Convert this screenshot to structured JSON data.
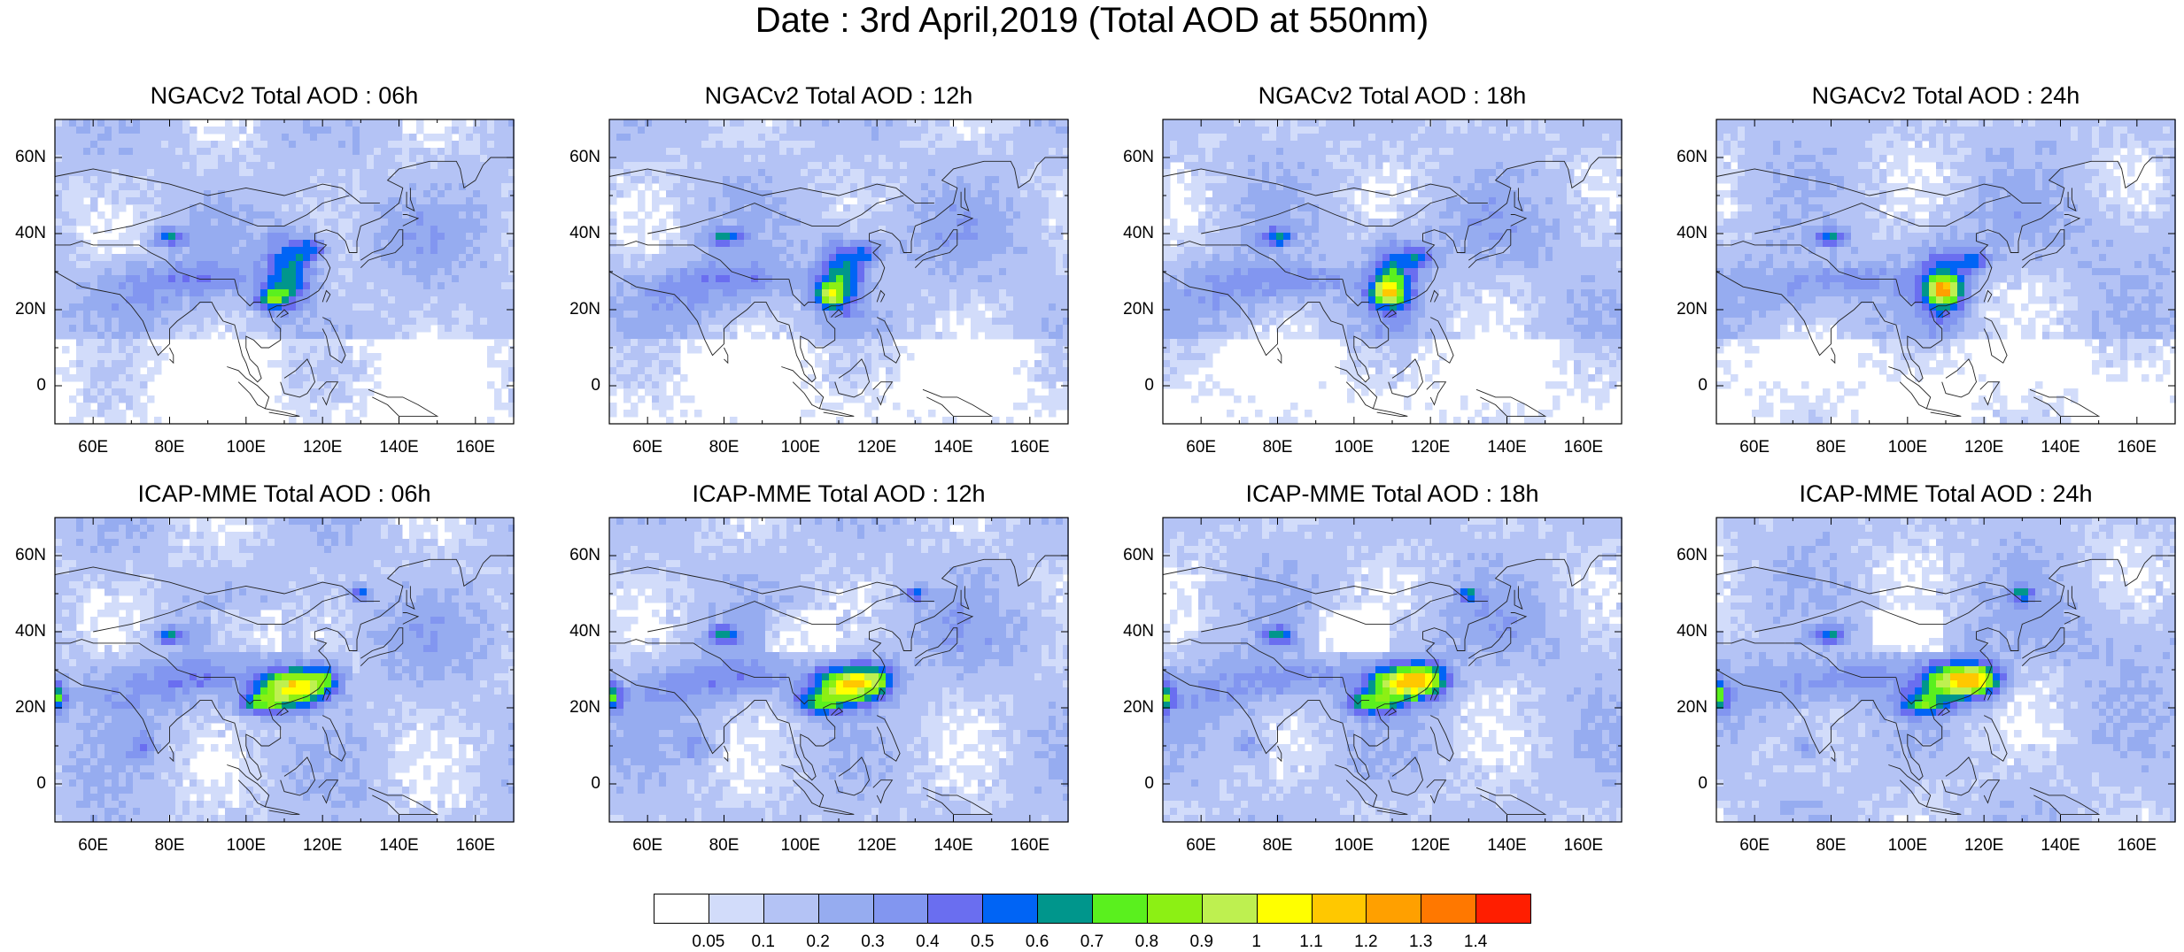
{
  "title": "Date : 3rd April,2019 (Total AOD at 550nm)",
  "lat_ticks": [
    "60N",
    "40N",
    "20N",
    "0"
  ],
  "lon_ticks": [
    "60E",
    "80E",
    "100E",
    "120E",
    "140E",
    "160E"
  ],
  "panels": [
    {
      "title": "NGACv2 Total AOD : 06h",
      "model": "ngac",
      "hour": 6
    },
    {
      "title": "NGACv2 Total AOD : 12h",
      "model": "ngac",
      "hour": 12
    },
    {
      "title": "NGACv2 Total AOD : 18h",
      "model": "ngac",
      "hour": 18
    },
    {
      "title": "NGACv2 Total AOD : 24h",
      "model": "ngac",
      "hour": 24
    },
    {
      "title": "ICAP-MME Total AOD : 06h",
      "model": "icap",
      "hour": 6
    },
    {
      "title": "ICAP-MME Total AOD : 12h",
      "model": "icap",
      "hour": 12
    },
    {
      "title": "ICAP-MME Total AOD : 18h",
      "model": "icap",
      "hour": 18
    },
    {
      "title": "ICAP-MME Total AOD : 24h",
      "model": "icap",
      "hour": 24
    }
  ],
  "colorbar": {
    "labels": [
      "0.05",
      "0.1",
      "0.2",
      "0.3",
      "0.4",
      "0.5",
      "0.6",
      "0.7",
      "0.8",
      "0.9",
      "1",
      "1.1",
      "1.2",
      "1.3",
      "1.4"
    ],
    "colors": [
      "#ffffff",
      "#d2dcfa",
      "#b4c3f5",
      "#96acf0",
      "#8296f0",
      "#6a6ef0",
      "#0064f5",
      "#00968c",
      "#5af01e",
      "#8cf014",
      "#bef050",
      "#ffff00",
      "#ffc800",
      "#ffa000",
      "#ff7800",
      "#ff1e00"
    ]
  }
}
